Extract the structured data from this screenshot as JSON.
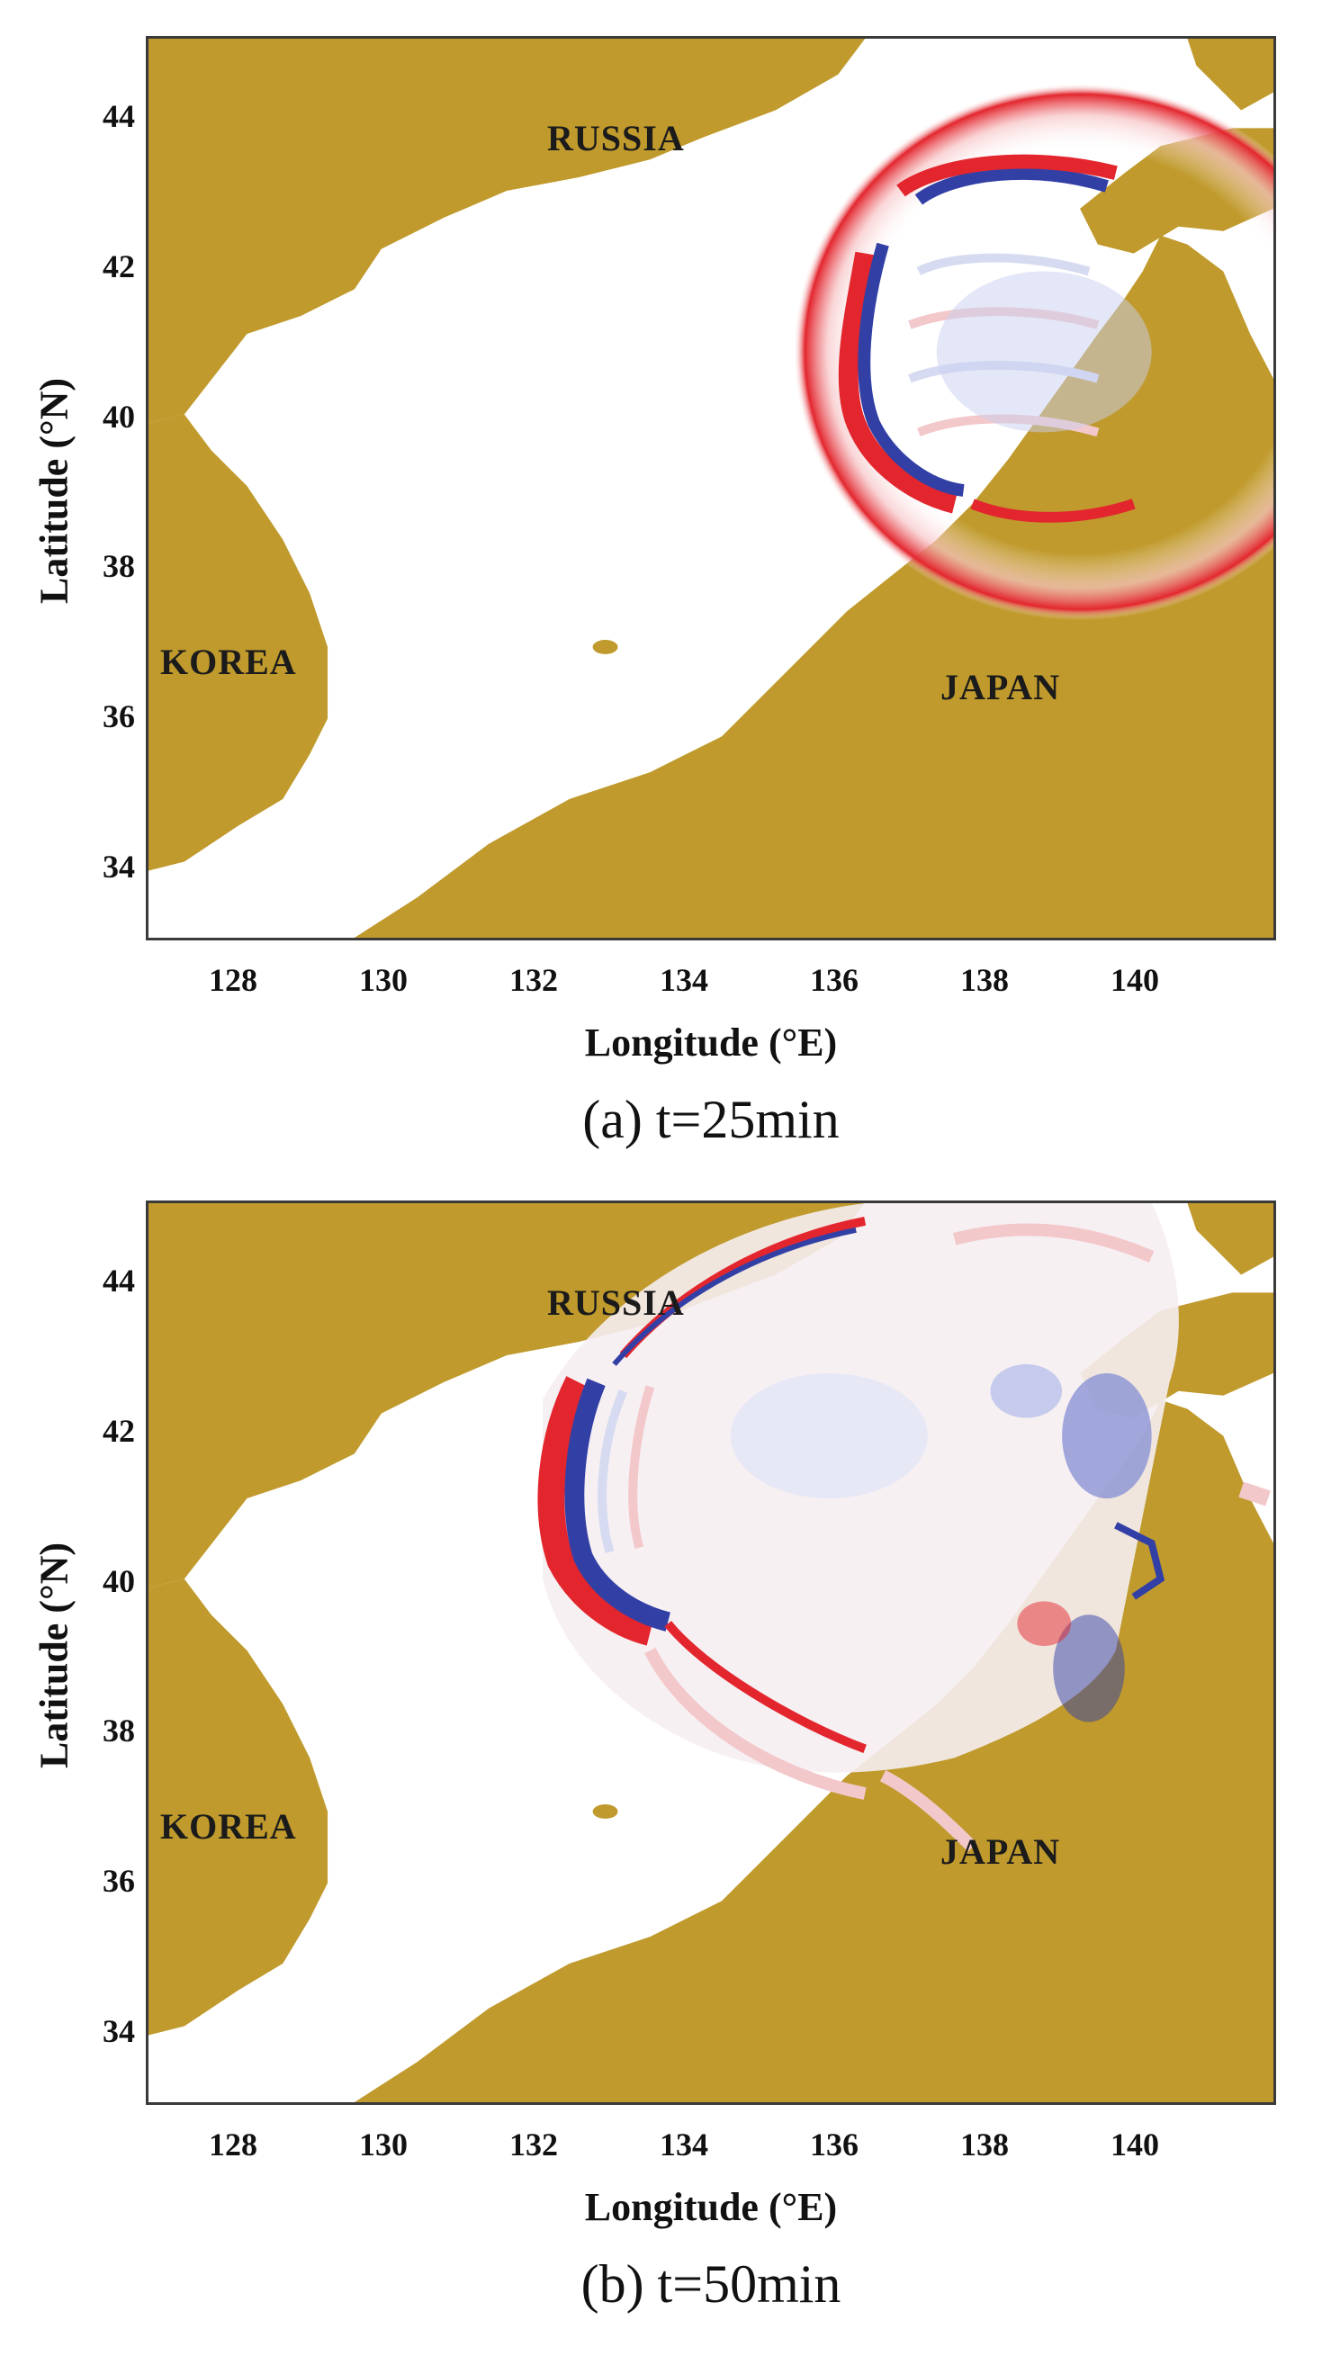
{
  "panels": [
    {
      "caption": "(a)  t=25min",
      "xlabel": "Longitude (°E)",
      "ylabel": "Latitude (°N)",
      "xticks": [
        "128",
        "130",
        "132",
        "134",
        "136",
        "138",
        "140"
      ],
      "yticks": [
        "44",
        "42",
        "40",
        "38",
        "36",
        "34"
      ],
      "labels": {
        "russia": "RUSSIA",
        "korea": "KOREA",
        "japan": "JAPAN"
      }
    },
    {
      "caption": "(b)  t=50min",
      "xlabel": "Longitude (°E)",
      "ylabel": "Latitude (°N)",
      "xticks": [
        "128",
        "130",
        "132",
        "134",
        "136",
        "138",
        "140"
      ],
      "yticks": [
        "44",
        "42",
        "40",
        "38",
        "36",
        "34"
      ],
      "labels": {
        "russia": "RUSSIA",
        "korea": "KOREA",
        "japan": "JAPAN"
      }
    }
  ],
  "colors": {
    "land": "#c09a2c",
    "sea": "#ffffff",
    "wave_positive": "#e3262e",
    "wave_negative": "#3240a6"
  }
}
